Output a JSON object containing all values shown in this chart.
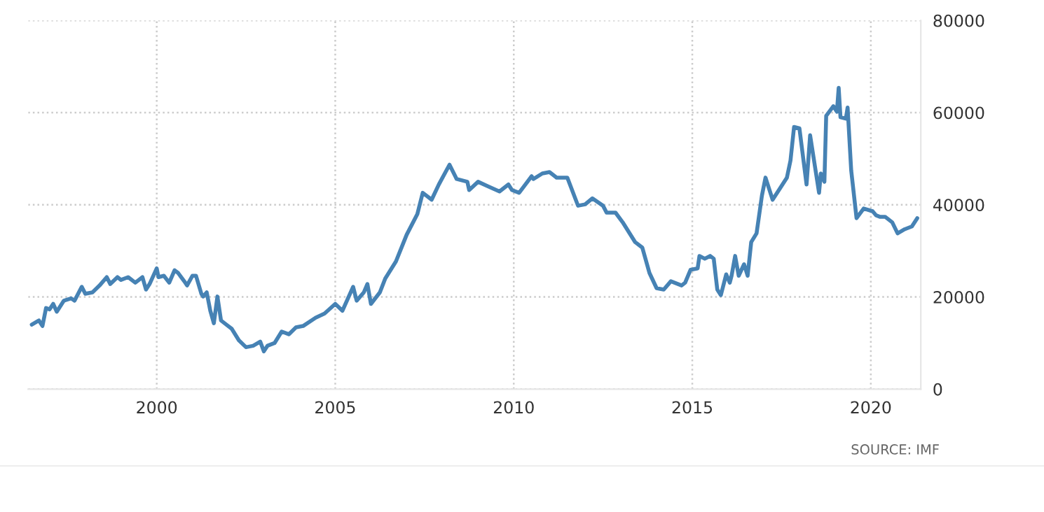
{
  "chart_data": {
    "type": "line",
    "x": [
      1996.5,
      1996.7,
      1996.8,
      1996.9,
      1997.0,
      1997.1,
      1997.2,
      1997.4,
      1997.6,
      1997.7,
      1997.9,
      1998.0,
      1998.2,
      1998.4,
      1998.6,
      1998.7,
      1998.9,
      1999.0,
      1999.2,
      1999.4,
      1999.6,
      1999.7,
      1999.8,
      2000.0,
      2000.05,
      2000.2,
      2000.35,
      2000.5,
      2000.6,
      2000.8,
      2000.85,
      2001.0,
      2001.1,
      2001.25,
      2001.3,
      2001.4,
      2001.5,
      2001.6,
      2001.7,
      2001.8,
      2001.95,
      2002.1,
      2002.3,
      2002.5,
      2002.7,
      2002.9,
      2003.0,
      2003.1,
      2003.3,
      2003.5,
      2003.7,
      2003.9,
      2004.1,
      2004.45,
      2004.7,
      2005.0,
      2005.2,
      2005.5,
      2005.6,
      2005.8,
      2005.9,
      2006.0,
      2006.25,
      2006.4,
      2006.7,
      2007.0,
      2007.3,
      2007.45,
      2007.7,
      2007.9,
      2008.2,
      2008.4,
      2008.7,
      2008.75,
      2009.0,
      2009.25,
      2009.6,
      2009.85,
      2009.95,
      2010.15,
      2010.5,
      2010.55,
      2010.8,
      2011.0,
      2011.2,
      2011.5,
      2011.8,
      2012.0,
      2012.2,
      2012.5,
      2012.6,
      2012.85,
      2013.05,
      2013.4,
      2013.6,
      2013.8,
      2014.0,
      2014.2,
      2014.4,
      2014.7,
      2014.8,
      2014.95,
      2015.15,
      2015.2,
      2015.35,
      2015.5,
      2015.6,
      2015.7,
      2015.8,
      2015.95,
      2016.05,
      2016.1,
      2016.2,
      2016.3,
      2016.45,
      2016.55,
      2016.65,
      2016.8,
      2016.95,
      2017.05,
      2017.25,
      2017.4,
      2017.65,
      2017.75,
      2017.85,
      2018.0,
      2018.2,
      2018.3,
      2018.55,
      2018.6,
      2018.7,
      2018.75,
      2018.95,
      2019.05,
      2019.1,
      2019.15,
      2019.3,
      2019.35,
      2019.45,
      2019.6,
      2019.8,
      2020.05,
      2020.15,
      2020.25,
      2020.4,
      2020.6,
      2020.75,
      2020.95,
      2021.15,
      2021.3
    ],
    "series": [
      {
        "color": "#4682b4",
        "values": [
          14000,
          14900,
          13700,
          17600,
          17300,
          18500,
          16800,
          19200,
          19700,
          19200,
          22200,
          20700,
          21000,
          22500,
          24300,
          22800,
          24300,
          23700,
          24300,
          23100,
          24300,
          21600,
          22800,
          26200,
          24300,
          24600,
          23100,
          25800,
          25200,
          23100,
          22500,
          24600,
          24600,
          20700,
          20100,
          21000,
          17000,
          14300,
          20100,
          14900,
          14000,
          13100,
          10600,
          9100,
          9400,
          10300,
          8200,
          9400,
          10000,
          12500,
          11900,
          13400,
          13700,
          15500,
          16400,
          18500,
          17000,
          22200,
          19200,
          21000,
          22800,
          18500,
          21000,
          24000,
          27700,
          33500,
          38000,
          42600,
          41100,
          44400,
          48700,
          45600,
          45000,
          43200,
          45000,
          44100,
          42900,
          44400,
          43200,
          42600,
          46200,
          45600,
          46800,
          47100,
          45900,
          45900,
          39800,
          40100,
          41400,
          39800,
          38300,
          38300,
          36200,
          31900,
          30700,
          25200,
          21900,
          21600,
          23400,
          22500,
          23100,
          25900,
          26200,
          28900,
          28300,
          28900,
          28300,
          21600,
          20400,
          24900,
          23100,
          24600,
          28900,
          24600,
          27100,
          24600,
          31900,
          33800,
          42000,
          45900,
          41100,
          42900,
          45900,
          49600,
          56900,
          56600,
          44400,
          55100,
          42600,
          46800,
          45000,
          59300,
          61400,
          60200,
          65400,
          59000,
          58700,
          61100,
          47500,
          37100,
          39200,
          38600,
          37700,
          37400,
          37400,
          36200,
          33800,
          34700,
          35300,
          37100
        ]
      }
    ],
    "xlim": [
      1996.4,
      2021.4
    ],
    "ylim": [
      0,
      80000
    ],
    "xticks": [
      2000,
      2005,
      2010,
      2015,
      2020
    ],
    "yticks": [
      0,
      20000,
      40000,
      60000,
      80000
    ],
    "grid": true,
    "legend": false,
    "annotations": [
      "SOURCE: IMF"
    ]
  }
}
